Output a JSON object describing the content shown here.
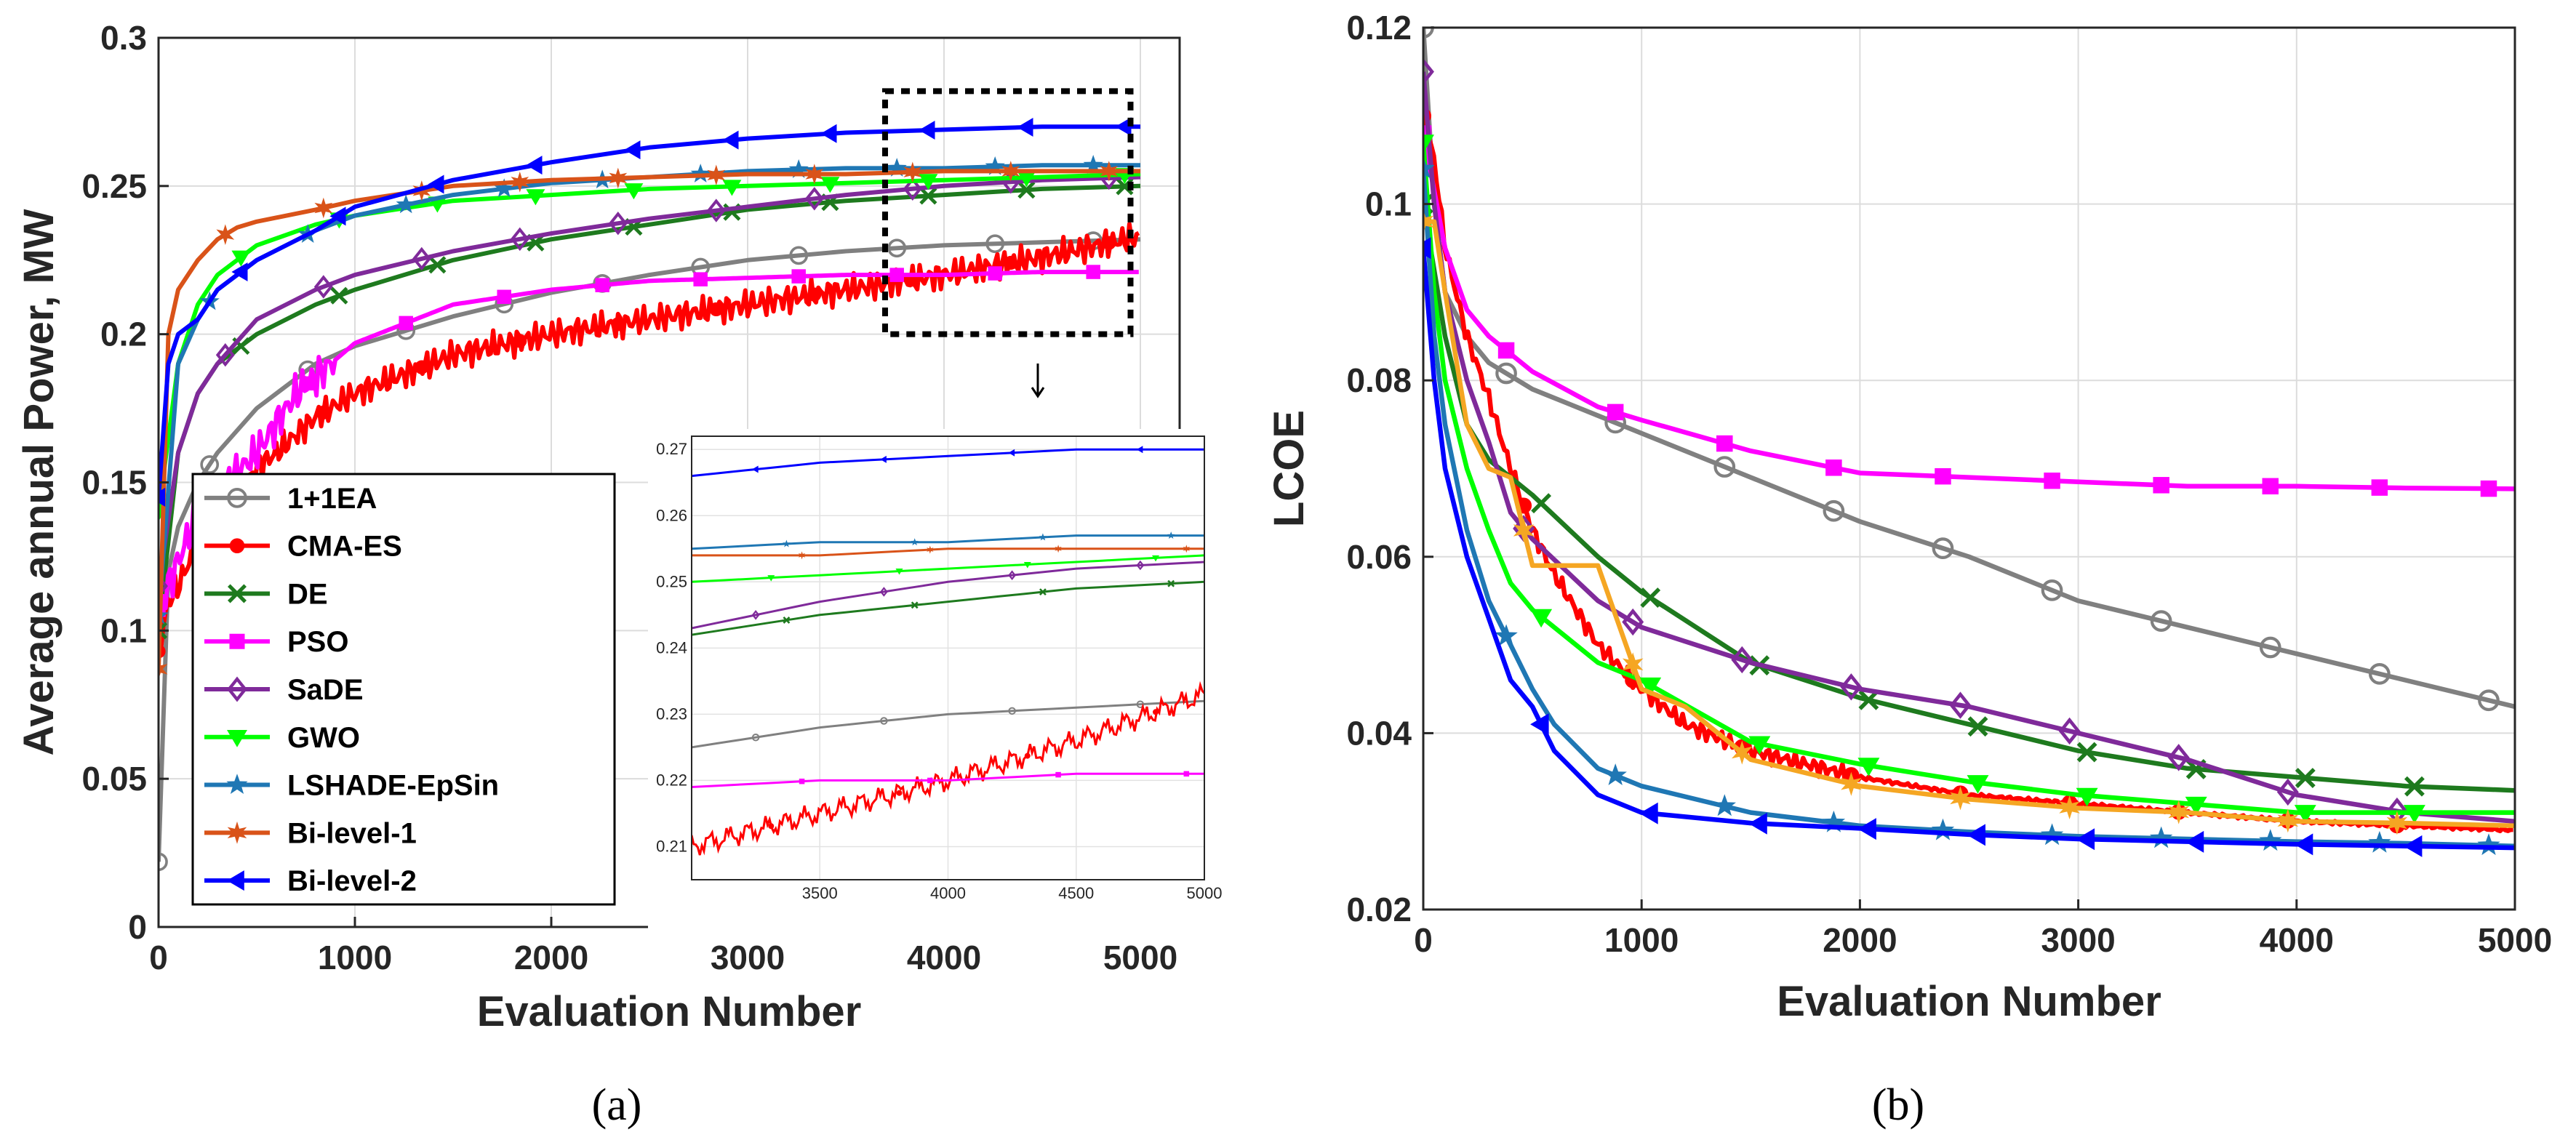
{
  "figure": {
    "panels": [
      {
        "id": "a",
        "label": "(a)"
      },
      {
        "id": "b",
        "label": "(b)"
      }
    ]
  },
  "chart_data": [
    {
      "id": "a",
      "type": "line",
      "title": "",
      "xlabel": "Evaluation Number",
      "ylabel": "Average annual Power, MW",
      "xlim": [
        0,
        5200
      ],
      "ylim": [
        0,
        0.3
      ],
      "xticks": [
        0,
        1000,
        2000,
        3000,
        4000,
        5000
      ],
      "xtick_labels": [
        "0",
        "1000",
        "2000",
        "3000",
        "4000",
        "5000"
      ],
      "yticks": [
        0,
        0.05,
        0.1,
        0.15,
        0.2,
        0.25,
        0.3
      ],
      "ytick_labels": [
        "0",
        "0.05",
        "0.1",
        "0.15",
        "0.2",
        "0.25",
        "0.3"
      ],
      "grid": true,
      "legend_position": "lower-left",
      "series": [
        {
          "name": "1+1EA",
          "color": "#808080",
          "marker": "circle",
          "x": [
            0,
            50,
            100,
            200,
            300,
            500,
            800,
            1000,
            1500,
            2000,
            2500,
            3000,
            3500,
            4000,
            4500,
            5000
          ],
          "y": [
            0.022,
            0.12,
            0.135,
            0.15,
            0.16,
            0.175,
            0.19,
            0.196,
            0.206,
            0.214,
            0.22,
            0.225,
            0.228,
            0.23,
            0.231,
            0.232
          ]
        },
        {
          "name": "CMA-ES",
          "color": "#ff0000",
          "marker": "dot",
          "x": [
            0,
            50,
            100,
            200,
            300,
            400,
            500,
            600,
            800,
            1000,
            1500,
            2000,
            2500,
            3000,
            3500,
            4000,
            4500,
            5000
          ],
          "y": [
            0.093,
            0.11,
            0.115,
            0.13,
            0.14,
            0.145,
            0.155,
            0.16,
            0.172,
            0.18,
            0.193,
            0.2,
            0.205,
            0.21,
            0.215,
            0.22,
            0.226,
            0.233
          ]
        },
        {
          "name": "DE",
          "color": "#1e7a1e",
          "marker": "x",
          "x": [
            0,
            100,
            200,
            300,
            500,
            800,
            1000,
            1500,
            2000,
            2500,
            3000,
            3500,
            4000,
            4500,
            5000
          ],
          "y": [
            0.1,
            0.16,
            0.18,
            0.19,
            0.2,
            0.21,
            0.215,
            0.225,
            0.232,
            0.237,
            0.242,
            0.245,
            0.247,
            0.249,
            0.25
          ]
        },
        {
          "name": "PSO",
          "color": "#ff00ff",
          "marker": "square",
          "x": [
            0,
            200,
            500,
            700,
            1000,
            1500,
            2000,
            2500,
            3000,
            3500,
            4000,
            4500,
            5000
          ],
          "y": [
            0.107,
            0.14,
            0.16,
            0.18,
            0.197,
            0.21,
            0.215,
            0.218,
            0.219,
            0.22,
            0.22,
            0.221,
            0.221
          ]
        },
        {
          "name": "SaDE",
          "color": "#7f2a9a",
          "marker": "diamond",
          "x": [
            0,
            100,
            200,
            300,
            500,
            800,
            1000,
            1500,
            2000,
            2500,
            3000,
            3500,
            4000,
            4500,
            5000
          ],
          "y": [
            0.115,
            0.16,
            0.18,
            0.19,
            0.205,
            0.215,
            0.22,
            0.228,
            0.234,
            0.239,
            0.243,
            0.247,
            0.25,
            0.252,
            0.253
          ]
        },
        {
          "name": "GWO",
          "color": "#00ff00",
          "marker": "triangle-down",
          "x": [
            0,
            100,
            200,
            300,
            500,
            800,
            1000,
            1500,
            2000,
            2500,
            3000,
            3500,
            4000,
            4500,
            5000
          ],
          "y": [
            0.14,
            0.19,
            0.21,
            0.22,
            0.23,
            0.237,
            0.24,
            0.245,
            0.247,
            0.249,
            0.25,
            0.251,
            0.252,
            0.253,
            0.254
          ]
        },
        {
          "name": "LSHADE-EpSin",
          "color": "#1f77b4",
          "marker": "star",
          "x": [
            0,
            100,
            200,
            300,
            500,
            800,
            1000,
            1500,
            2000,
            2500,
            3000,
            3500,
            4000,
            4500,
            5000
          ],
          "y": [
            0.105,
            0.19,
            0.205,
            0.215,
            0.225,
            0.235,
            0.24,
            0.247,
            0.251,
            0.253,
            0.255,
            0.256,
            0.256,
            0.257,
            0.257
          ]
        },
        {
          "name": "Bi-level-1",
          "color": "#d95319",
          "marker": "hexagram",
          "x": [
            0,
            50,
            100,
            200,
            300,
            400,
            500,
            800,
            1000,
            1500,
            2000,
            2500,
            3000,
            3500,
            4000,
            4500,
            5000
          ],
          "y": [
            0.087,
            0.2,
            0.215,
            0.225,
            0.232,
            0.236,
            0.238,
            0.242,
            0.245,
            0.25,
            0.252,
            0.253,
            0.254,
            0.254,
            0.255,
            0.255,
            0.255
          ]
        },
        {
          "name": "Bi-level-2",
          "color": "#0000ff",
          "marker": "triangle-left",
          "x": [
            0,
            50,
            100,
            200,
            300,
            500,
            800,
            1000,
            1500,
            2000,
            2500,
            3000,
            3500,
            4000,
            4500,
            5000
          ],
          "y": [
            0.145,
            0.19,
            0.2,
            0.205,
            0.215,
            0.225,
            0.235,
            0.243,
            0.252,
            0.258,
            0.263,
            0.266,
            0.268,
            0.269,
            0.27,
            0.27
          ]
        }
      ],
      "inset": {
        "xlim": [
          3000,
          5000
        ],
        "ylim": [
          0.205,
          0.272
        ],
        "xticks": [
          3500,
          4000,
          4500,
          5000
        ],
        "xtick_labels": [
          "3500",
          "4000",
          "4500",
          "5000"
        ],
        "yticks": [
          0.21,
          0.22,
          0.23,
          0.24,
          0.25,
          0.26,
          0.27
        ],
        "ytick_labels": [
          "0.21",
          "0.22",
          "0.23",
          "0.24",
          "0.25",
          "0.26",
          "0.27"
        ],
        "zoom_box": {
          "xlim": [
            3700,
            4950
          ],
          "ylim": [
            0.2,
            0.282
          ]
        }
      }
    },
    {
      "id": "b",
      "type": "line",
      "title": "",
      "xlabel": "Evaluation Number",
      "ylabel": "LCOE",
      "xlim": [
        0,
        5000
      ],
      "ylim": [
        0.02,
        0.12
      ],
      "xticks": [
        0,
        1000,
        2000,
        3000,
        4000,
        5000
      ],
      "xtick_labels": [
        "0",
        "1000",
        "2000",
        "3000",
        "4000",
        "5000"
      ],
      "yticks": [
        0.02,
        0.04,
        0.06,
        0.08,
        0.1,
        0.12
      ],
      "ytick_labels": [
        "0.02",
        "0.04",
        "0.06",
        "0.08",
        "0.1",
        "0.12"
      ],
      "grid": true,
      "series": [
        {
          "name": "1+1EA",
          "color": "#808080",
          "marker": "circle",
          "x": [
            0,
            50,
            100,
            200,
            300,
            500,
            800,
            1000,
            1500,
            2000,
            2500,
            3000,
            3500,
            4000,
            4500,
            5000
          ],
          "y": [
            0.12,
            0.1,
            0.09,
            0.085,
            0.082,
            0.079,
            0.076,
            0.074,
            0.069,
            0.064,
            0.06,
            0.055,
            0.052,
            0.049,
            0.046,
            0.043
          ]
        },
        {
          "name": "CMA-ES",
          "color": "#ff0000",
          "marker": "dot",
          "x": [
            0,
            50,
            100,
            200,
            300,
            400,
            500,
            600,
            800,
            1000,
            1200,
            1500,
            2000,
            2500,
            3000,
            3500,
            4000,
            4500,
            5000
          ],
          "y": [
            0.11,
            0.105,
            0.095,
            0.085,
            0.078,
            0.07,
            0.063,
            0.058,
            0.05,
            0.045,
            0.041,
            0.038,
            0.035,
            0.033,
            0.032,
            0.031,
            0.03,
            0.0295,
            0.029
          ]
        },
        {
          "name": "DE",
          "color": "#1e7a1e",
          "marker": "x",
          "x": [
            0,
            100,
            200,
            300,
            500,
            800,
            1000,
            1500,
            2000,
            2500,
            3000,
            3500,
            4000,
            4500,
            5000
          ],
          "y": [
            0.1,
            0.085,
            0.075,
            0.071,
            0.067,
            0.06,
            0.056,
            0.048,
            0.044,
            0.041,
            0.038,
            0.036,
            0.035,
            0.034,
            0.0335
          ]
        },
        {
          "name": "PSO",
          "color": "#ff00ff",
          "marker": "square",
          "x": [
            0,
            100,
            200,
            300,
            500,
            800,
            1000,
            1500,
            2000,
            2500,
            3000,
            3500,
            4000,
            4500,
            5000
          ],
          "y": [
            0.108,
            0.095,
            0.088,
            0.085,
            0.081,
            0.077,
            0.0755,
            0.072,
            0.0695,
            0.069,
            0.0685,
            0.068,
            0.068,
            0.0678,
            0.0677
          ]
        },
        {
          "name": "SaDE",
          "color": "#7f2a9a",
          "marker": "diamond",
          "x": [
            0,
            50,
            100,
            200,
            300,
            400,
            500,
            800,
            1000,
            1500,
            2000,
            2500,
            3000,
            3500,
            4000,
            4500,
            5000
          ],
          "y": [
            0.115,
            0.1,
            0.09,
            0.08,
            0.073,
            0.065,
            0.062,
            0.055,
            0.052,
            0.048,
            0.045,
            0.043,
            0.04,
            0.037,
            0.033,
            0.031,
            0.03
          ]
        },
        {
          "name": "GWO",
          "color": "#00ff00",
          "marker": "triangle-down",
          "x": [
            0,
            50,
            100,
            200,
            300,
            400,
            500,
            800,
            1000,
            1500,
            2000,
            2500,
            3000,
            3500,
            4000,
            4500,
            5000
          ],
          "y": [
            0.107,
            0.09,
            0.08,
            0.07,
            0.063,
            0.057,
            0.054,
            0.048,
            0.046,
            0.039,
            0.0365,
            0.0345,
            0.033,
            0.032,
            0.031,
            0.031,
            0.031
          ]
        },
        {
          "name": "LSHADE-EpSin",
          "color": "#1f77b4",
          "marker": "star",
          "x": [
            0,
            50,
            100,
            200,
            300,
            400,
            500,
            600,
            800,
            1000,
            1500,
            2000,
            2500,
            3000,
            3500,
            4000,
            4500,
            5000
          ],
          "y": [
            0.104,
            0.085,
            0.075,
            0.063,
            0.055,
            0.05,
            0.045,
            0.041,
            0.036,
            0.034,
            0.031,
            0.0295,
            0.0288,
            0.0283,
            0.028,
            0.0277,
            0.0275,
            0.0272
          ]
        },
        {
          "name": "Bi-level-1",
          "color": "#f5a623",
          "marker": "hexagram",
          "x": [
            0,
            50,
            100,
            200,
            300,
            400,
            500,
            600,
            800,
            1000,
            1200,
            1500,
            2000,
            2500,
            3000,
            3500,
            4000,
            4500,
            5000
          ],
          "y": [
            0.098,
            0.098,
            0.09,
            0.075,
            0.07,
            0.069,
            0.059,
            0.059,
            0.059,
            0.045,
            0.043,
            0.037,
            0.034,
            0.0325,
            0.0315,
            0.031,
            0.03,
            0.0298,
            0.0295
          ]
        },
        {
          "name": "Bi-level-2",
          "color": "#0000ff",
          "marker": "triangle-left",
          "x": [
            0,
            50,
            100,
            200,
            300,
            400,
            500,
            600,
            800,
            1000,
            1500,
            2000,
            2500,
            3000,
            3500,
            4000,
            4500,
            5000
          ],
          "y": [
            0.095,
            0.08,
            0.07,
            0.06,
            0.053,
            0.046,
            0.043,
            0.038,
            0.033,
            0.031,
            0.0298,
            0.0292,
            0.0285,
            0.028,
            0.0277,
            0.0274,
            0.0272,
            0.027
          ]
        }
      ]
    }
  ]
}
